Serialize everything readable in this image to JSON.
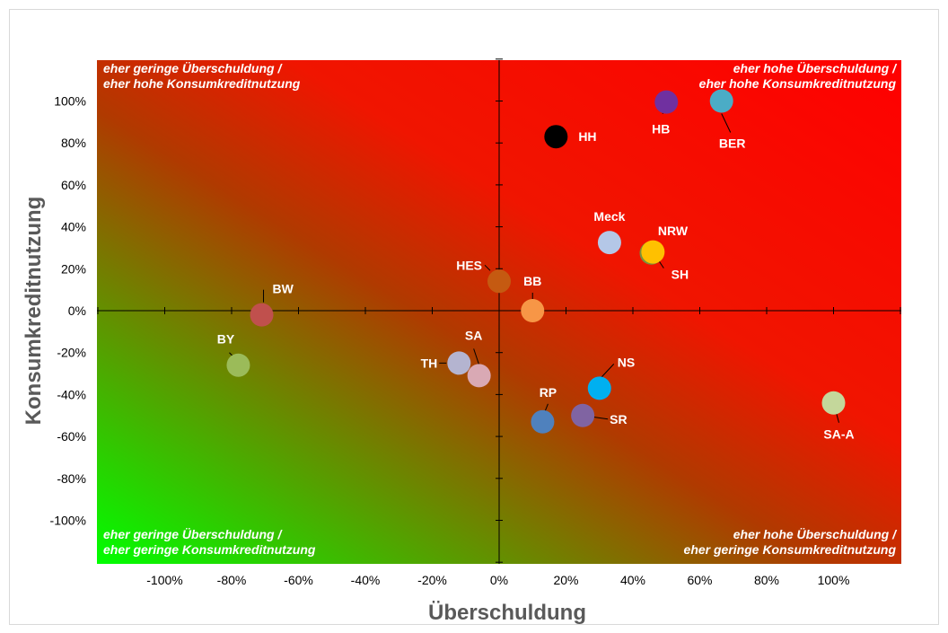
{
  "chart_data": {
    "type": "scatter",
    "xlabel": "Überschuldung",
    "ylabel": "Konsumkreditnutzung",
    "xlim": [
      -1.2,
      1.2
    ],
    "ylim": [
      -1.2,
      1.2
    ],
    "x_ticks": [
      -1.0,
      -0.8,
      -0.6,
      -0.4,
      -0.2,
      0.0,
      0.2,
      0.4,
      0.6,
      0.8,
      1.0
    ],
    "x_tick_labels": [
      "-100%",
      "-80%",
      "-60%",
      "-40%",
      "-20%",
      "0%",
      "20%",
      "40%",
      "60%",
      "80%",
      "100%"
    ],
    "y_ticks": [
      1.0,
      0.8,
      0.6,
      0.4,
      0.2,
      0.0,
      -0.2,
      -0.4,
      -0.6,
      -0.8,
      -1.0
    ],
    "y_tick_labels": [
      "100%",
      "80%",
      "60%",
      "40%",
      "20%",
      "0%",
      "-20%",
      "-40%",
      "-60%",
      "-80%",
      "-100%"
    ],
    "quadrants": {
      "top_left": [
        "eher geringe Überschuldung /",
        "eher hohe Konsumkreditnutzung"
      ],
      "top_right": [
        "eher hohe Überschuldung /",
        "eher hohe Konsumkreditnutzung"
      ],
      "bottom_left": [
        "eher geringe Überschuldung /",
        "eher geringe Konsumkreditnutzung"
      ],
      "bottom_right": [
        "eher hohe Überschuldung /",
        "eher geringe Konsumkreditnutzung"
      ]
    },
    "points": [
      {
        "label": "HH",
        "x": 0.17,
        "y": 0.83,
        "color": "#000000"
      },
      {
        "label": "HB",
        "x": 0.5,
        "y": 0.995,
        "color": "#7030a0"
      },
      {
        "label": "BER",
        "x": 0.665,
        "y": 1.0,
        "color": "#4bacc6"
      },
      {
        "label": "Meck",
        "x": 0.33,
        "y": 0.325,
        "color": "#b4c7e7"
      },
      {
        "label": "NRW",
        "x": 0.455,
        "y": 0.275,
        "color": "#77933c"
      },
      {
        "label": "SH",
        "x": 0.46,
        "y": 0.28,
        "color": "#ffc000"
      },
      {
        "label": "HES",
        "x": 0.0,
        "y": 0.14,
        "color": "#c55a11"
      },
      {
        "label": "BB",
        "x": 0.1,
        "y": 0.0,
        "color": "#f79646"
      },
      {
        "label": "BW",
        "x": -0.71,
        "y": -0.02,
        "color": "#c0504d"
      },
      {
        "label": "BY",
        "x": -0.78,
        "y": -0.26,
        "color": "#9bbb59"
      },
      {
        "label": "TH",
        "x": -0.12,
        "y": -0.25,
        "color": "#b4b4d0"
      },
      {
        "label": "SA",
        "x": -0.06,
        "y": -0.31,
        "color": "#d9a9b4"
      },
      {
        "label": "NS",
        "x": 0.3,
        "y": -0.37,
        "color": "#00b0f0"
      },
      {
        "label": "RP",
        "x": 0.13,
        "y": -0.53,
        "color": "#4f81bd"
      },
      {
        "label": "SR",
        "x": 0.25,
        "y": -0.5,
        "color": "#8064a2"
      },
      {
        "label": "SA-A",
        "x": 1.0,
        "y": -0.44,
        "color": "#c4d79b"
      }
    ]
  }
}
